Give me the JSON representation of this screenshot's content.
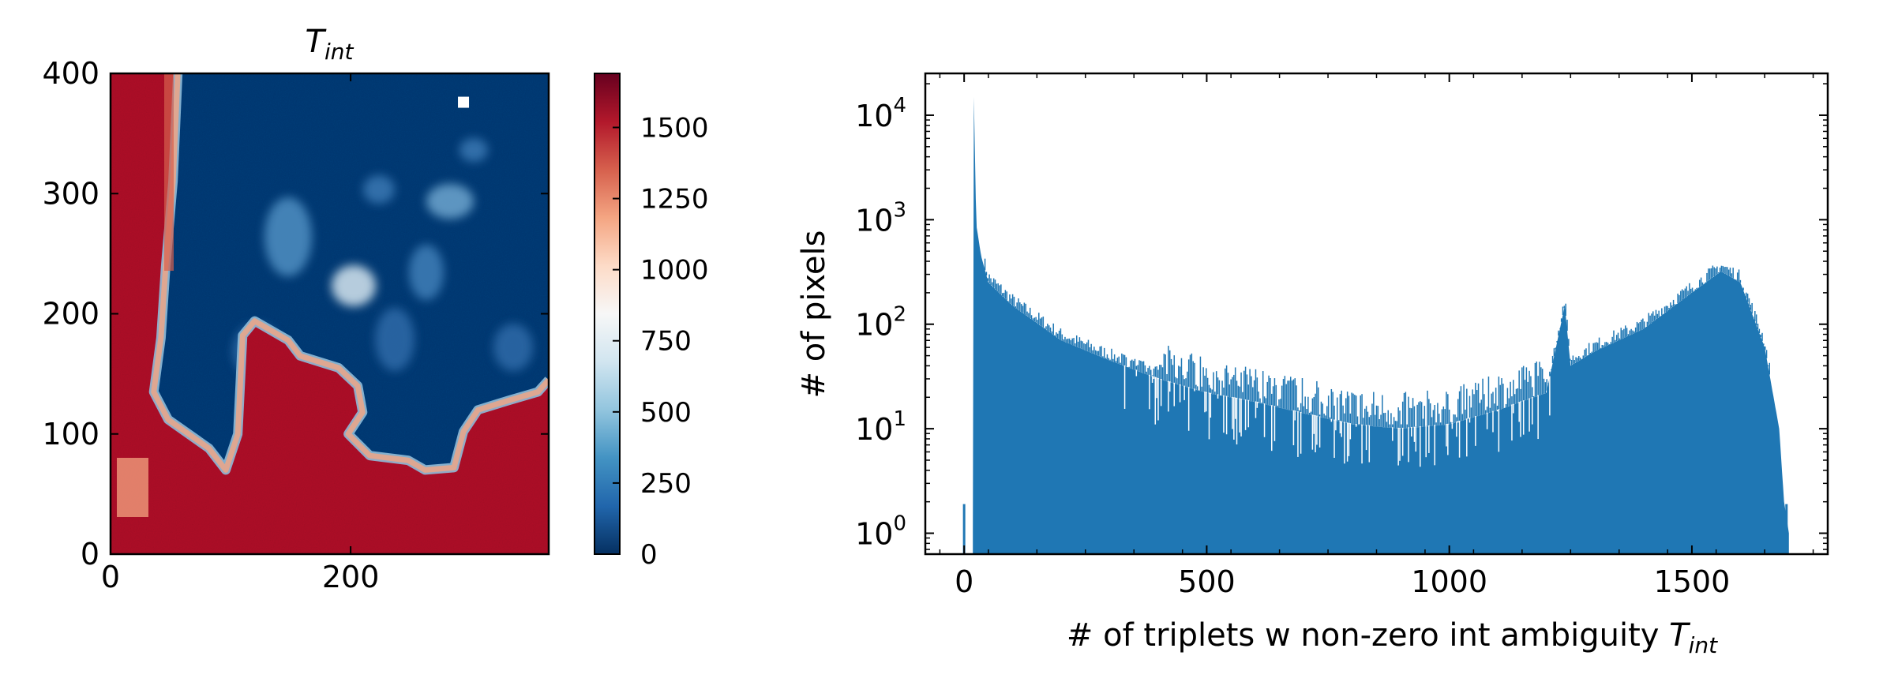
{
  "chart_data": [
    {
      "type": "heatmap",
      "title": "T_int",
      "title_main": "T",
      "title_sub": "int",
      "xlim": [
        0,
        365
      ],
      "ylim": [
        0,
        400
      ],
      "xticks": [
        0,
        200
      ],
      "yticks": [
        0,
        100,
        200,
        300,
        400
      ],
      "colormap": "RdBu_r",
      "colorbar": {
        "range": [
          0,
          1690
        ],
        "ticks": [
          0,
          250,
          500,
          750,
          1000,
          1250,
          1500
        ]
      },
      "regions": {
        "high_value_region": "left strip and lower half (values ~1500-1690)",
        "low_value_region": "upper-right field (values ~0-300)",
        "masked_pixel": [
          294,
          376
        ]
      },
      "boundary": [
        [
          56,
          400
        ],
        [
          52,
          310
        ],
        [
          46,
          240
        ],
        [
          42,
          180
        ],
        [
          36,
          135
        ],
        [
          48,
          112
        ],
        [
          82,
          88
        ],
        [
          96,
          70
        ],
        [
          106,
          100
        ],
        [
          110,
          182
        ],
        [
          120,
          194
        ],
        [
          148,
          178
        ],
        [
          158,
          165
        ],
        [
          190,
          155
        ],
        [
          206,
          140
        ],
        [
          210,
          118
        ],
        [
          198,
          100
        ],
        [
          216,
          82
        ],
        [
          248,
          78
        ],
        [
          262,
          70
        ],
        [
          286,
          72
        ],
        [
          294,
          102
        ],
        [
          306,
          120
        ],
        [
          332,
          128
        ],
        [
          356,
          135
        ],
        [
          365,
          145
        ]
      ]
    },
    {
      "type": "histogram",
      "xlabel": "# of triplets w non-zero int ambiguity T_int",
      "xlabel_main": "# of triplets w non-zero int ambiguity ",
      "xlabel_italic": "T",
      "xlabel_sub": "int",
      "ylabel": "# of pixels",
      "xlim": [
        -80,
        1780
      ],
      "ylim_log10": [
        -0.2,
        4.4
      ],
      "yscale": "log",
      "color": "#1f77b4",
      "xticks": [
        0,
        500,
        1000,
        1500
      ],
      "yticks": [
        {
          "base": "10",
          "exp": "0",
          "value": 1
        },
        {
          "base": "10",
          "exp": "1",
          "value": 10
        },
        {
          "base": "10",
          "exp": "2",
          "value": 100
        },
        {
          "base": "10",
          "exp": "3",
          "value": 1000
        },
        {
          "base": "10",
          "exp": "4",
          "value": 10000
        }
      ],
      "envelope": [
        [
          0,
          1
        ],
        [
          18,
          1
        ],
        [
          20,
          15000
        ],
        [
          25,
          900
        ],
        [
          35,
          450
        ],
        [
          50,
          250
        ],
        [
          100,
          150
        ],
        [
          200,
          70
        ],
        [
          300,
          45
        ],
        [
          400,
          30
        ],
        [
          500,
          22
        ],
        [
          600,
          18
        ],
        [
          700,
          14
        ],
        [
          800,
          11
        ],
        [
          900,
          10
        ],
        [
          1000,
          11
        ],
        [
          1100,
          15
        ],
        [
          1200,
          22
        ],
        [
          1238,
          150
        ],
        [
          1250,
          40
        ],
        [
          1300,
          55
        ],
        [
          1400,
          90
        ],
        [
          1500,
          200
        ],
        [
          1560,
          320
        ],
        [
          1600,
          250
        ],
        [
          1650,
          60
        ],
        [
          1680,
          10
        ],
        [
          1690,
          2
        ],
        [
          1700,
          1
        ]
      ],
      "isolated_bars": [
        [
          0,
          1
        ],
        [
          1695,
          1
        ]
      ]
    }
  ]
}
